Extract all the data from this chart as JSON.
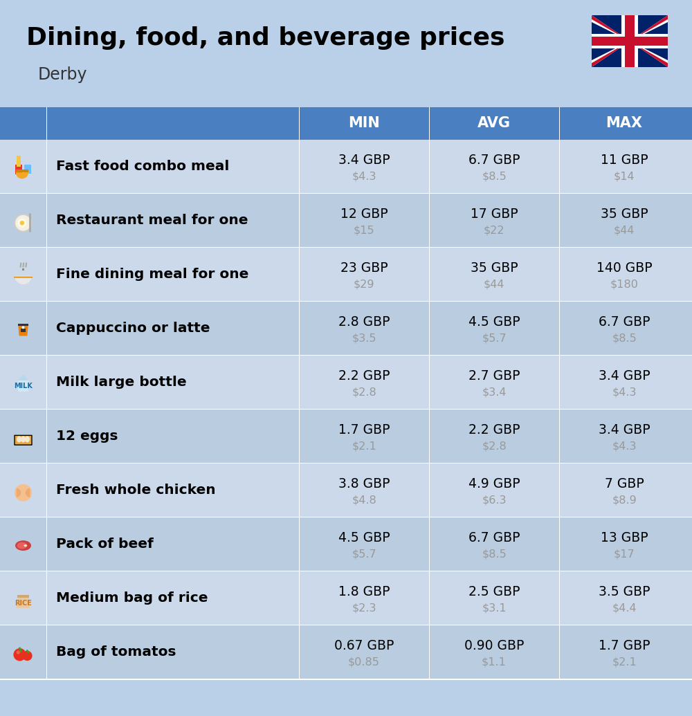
{
  "title": "Dining, food, and beverage prices",
  "subtitle": "Derby",
  "header_bg": "#4a7fc1",
  "header_text_color": "#ffffff",
  "row_bg_light": "#ccd9ea",
  "row_bg_dark": "#b9cce0",
  "top_bg": "#bad0e8",
  "col_headers": [
    "MIN",
    "AVG",
    "MAX"
  ],
  "rows": [
    {
      "label": "Fast food combo meal",
      "min_gbp": "3.4 GBP",
      "min_usd": "$4.3",
      "avg_gbp": "6.7 GBP",
      "avg_usd": "$8.5",
      "max_gbp": "11 GBP",
      "max_usd": "$14"
    },
    {
      "label": "Restaurant meal for one",
      "min_gbp": "12 GBP",
      "min_usd": "$15",
      "avg_gbp": "17 GBP",
      "avg_usd": "$22",
      "max_gbp": "35 GBP",
      "max_usd": "$44"
    },
    {
      "label": "Fine dining meal for one",
      "min_gbp": "23 GBP",
      "min_usd": "$29",
      "avg_gbp": "35 GBP",
      "avg_usd": "$44",
      "max_gbp": "140 GBP",
      "max_usd": "$180"
    },
    {
      "label": "Cappuccino or latte",
      "min_gbp": "2.8 GBP",
      "min_usd": "$3.5",
      "avg_gbp": "4.5 GBP",
      "avg_usd": "$5.7",
      "max_gbp": "6.7 GBP",
      "max_usd": "$8.5"
    },
    {
      "label": "Milk large bottle",
      "min_gbp": "2.2 GBP",
      "min_usd": "$2.8",
      "avg_gbp": "2.7 GBP",
      "avg_usd": "$3.4",
      "max_gbp": "3.4 GBP",
      "max_usd": "$4.3"
    },
    {
      "label": "12 eggs",
      "min_gbp": "1.7 GBP",
      "min_usd": "$2.1",
      "avg_gbp": "2.2 GBP",
      "avg_usd": "$2.8",
      "max_gbp": "3.4 GBP",
      "max_usd": "$4.3"
    },
    {
      "label": "Fresh whole chicken",
      "min_gbp": "3.8 GBP",
      "min_usd": "$4.8",
      "avg_gbp": "4.9 GBP",
      "avg_usd": "$6.3",
      "max_gbp": "7 GBP",
      "max_usd": "$8.9"
    },
    {
      "label": "Pack of beef",
      "min_gbp": "4.5 GBP",
      "min_usd": "$5.7",
      "avg_gbp": "6.7 GBP",
      "avg_usd": "$8.5",
      "max_gbp": "13 GBP",
      "max_usd": "$17"
    },
    {
      "label": "Medium bag of rice",
      "min_gbp": "1.8 GBP",
      "min_usd": "$2.3",
      "avg_gbp": "2.5 GBP",
      "avg_usd": "$3.1",
      "max_gbp": "3.5 GBP",
      "max_usd": "$4.4"
    },
    {
      "label": "Bag of tomatos",
      "min_gbp": "0.67 GBP",
      "min_usd": "$0.85",
      "avg_gbp": "0.90 GBP",
      "avg_usd": "$1.1",
      "max_gbp": "1.7 GBP",
      "max_usd": "$2.1"
    }
  ]
}
